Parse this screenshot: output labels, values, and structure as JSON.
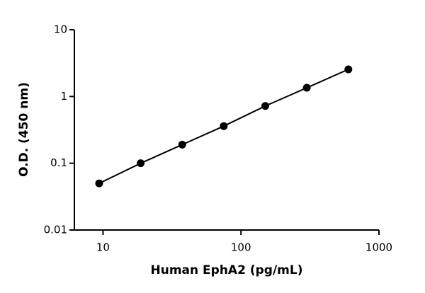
{
  "chart_data": {
    "type": "scatter",
    "x_label": "Human EphA2 (pg/mL)",
    "y_label": "O.D. (450 nm)",
    "x": [
      9.375,
      18.75,
      37.5,
      75,
      150,
      300,
      600
    ],
    "series": [
      {
        "values": [
          0.05,
          0.1,
          0.19,
          0.36,
          0.72,
          1.35,
          2.55
        ],
        "color": "#000000"
      }
    ],
    "xlim": [
      6.2,
      1000
    ],
    "ylim": [
      0.01,
      10
    ],
    "xticks": [
      10,
      100,
      1000
    ],
    "yticks": [
      0.01,
      0.1,
      1,
      10
    ],
    "x_log": true,
    "y_log": true,
    "line": true
  }
}
